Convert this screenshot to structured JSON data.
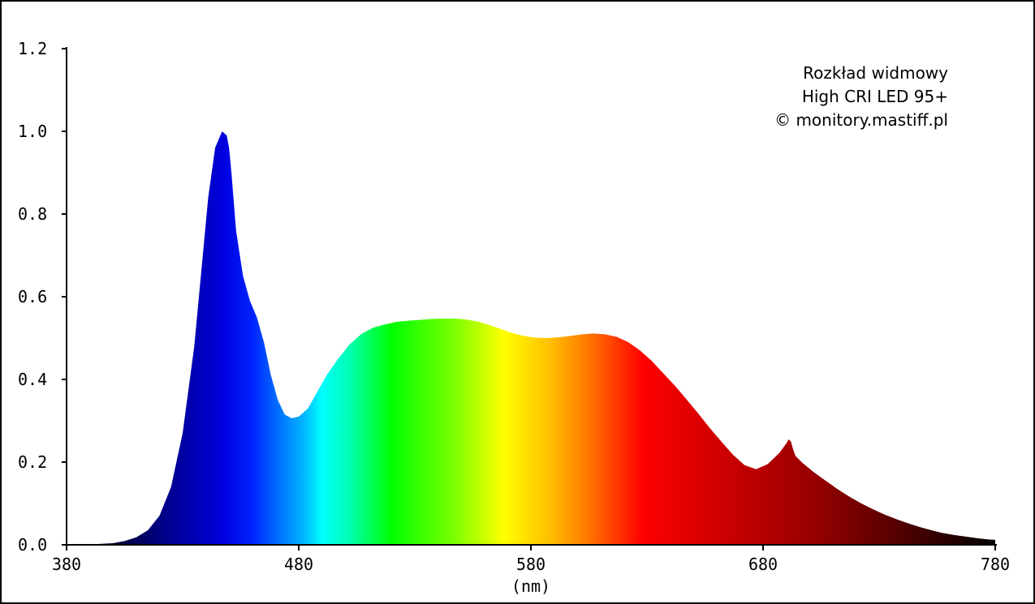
{
  "chart_data": {
    "type": "area",
    "title": "",
    "xlabel": "(nm)",
    "ylabel": "",
    "xlim": [
      380,
      780
    ],
    "ylim": [
      0,
      1.2
    ],
    "xticks": [
      "380",
      "480",
      "580",
      "680",
      "780"
    ],
    "yticks": [
      "0.0",
      "0.2",
      "0.4",
      "0.6",
      "0.8",
      "1.0",
      "1.2"
    ],
    "grid": false,
    "legend_text": [
      "Rozkład widmowy",
      "High CRI LED 95+",
      "© monitory.mastiff.pl"
    ],
    "legend_placement": "top-right",
    "fill": "visible-spectrum gradient by wavelength",
    "series": [
      {
        "x": [
          380,
          390,
          400,
          405,
          410,
          415,
          420,
          425,
          430,
          435,
          438,
          441,
          444,
          447,
          449,
          450,
          451,
          453,
          456,
          459,
          462,
          465,
          468,
          471,
          474,
          477,
          480,
          484,
          488,
          492,
          497,
          502,
          507,
          512,
          517,
          522,
          527,
          532,
          537,
          542,
          547,
          552,
          557,
          562,
          567,
          572,
          577,
          582,
          587,
          592,
          597,
          602,
          607,
          612,
          617,
          622,
          627,
          632,
          637,
          642,
          647,
          652,
          657,
          662,
          667,
          672,
          677,
          682,
          687,
          690,
          691,
          692,
          693,
          694,
          697,
          702,
          707,
          712,
          717,
          722,
          727,
          732,
          737,
          742,
          747,
          752,
          757,
          762,
          767,
          772,
          777,
          780
        ],
        "y": [
          0.0,
          0.001,
          0.004,
          0.009,
          0.018,
          0.035,
          0.07,
          0.14,
          0.27,
          0.48,
          0.66,
          0.84,
          0.96,
          1.0,
          0.99,
          0.96,
          0.9,
          0.76,
          0.65,
          0.59,
          0.55,
          0.49,
          0.41,
          0.35,
          0.315,
          0.306,
          0.31,
          0.33,
          0.37,
          0.41,
          0.45,
          0.485,
          0.51,
          0.525,
          0.533,
          0.539,
          0.542,
          0.544,
          0.546,
          0.547,
          0.547,
          0.545,
          0.54,
          0.532,
          0.522,
          0.512,
          0.505,
          0.501,
          0.5,
          0.502,
          0.505,
          0.509,
          0.511,
          0.509,
          0.503,
          0.49,
          0.47,
          0.445,
          0.415,
          0.385,
          0.352,
          0.318,
          0.283,
          0.25,
          0.218,
          0.193,
          0.183,
          0.195,
          0.222,
          0.245,
          0.255,
          0.25,
          0.23,
          0.215,
          0.198,
          0.175,
          0.155,
          0.135,
          0.117,
          0.101,
          0.087,
          0.074,
          0.063,
          0.053,
          0.044,
          0.036,
          0.029,
          0.024,
          0.02,
          0.016,
          0.013,
          0.012
        ]
      }
    ]
  }
}
